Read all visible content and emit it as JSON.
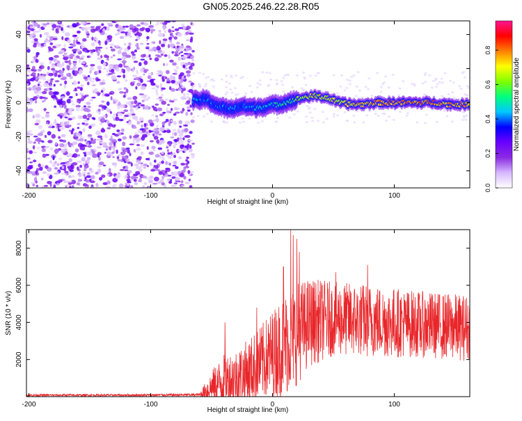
{
  "title": "GN05.2025.246.22.28.R05",
  "chart_data": [
    {
      "type": "heatmap",
      "title": "GN05.2025.246.22.28.R05",
      "xlabel": "Height of straight line (km)",
      "ylabel": "Frequency (Hz)",
      "xlim": [
        -202,
        162
      ],
      "ylim": [
        -50,
        48
      ],
      "xticks": [
        -200,
        -100,
        0,
        100
      ],
      "yticks": [
        -40,
        -20,
        0,
        20,
        40
      ],
      "colorbar": {
        "label": "Normalized spectral amplitude",
        "range": [
          0,
          0.97
        ],
        "ticks": [
          0.0,
          0.2,
          0.4,
          0.6,
          0.8
        ],
        "colormap": [
          "#ffffff",
          "#d6b8ff",
          "#8a2be2",
          "#6a00ff",
          "#0000ff",
          "#00c8ff",
          "#00ff80",
          "#80ff00",
          "#ffff00",
          "#ff8000",
          "#ff0000",
          "#ff1493"
        ]
      },
      "noise_region": {
        "x_start": -202,
        "x_end": -65,
        "amplitude_range": [
          0.0,
          0.25
        ]
      },
      "signal_ridge": [
        {
          "x": -65,
          "freq": 1,
          "amp": 0.45
        },
        {
          "x": -55,
          "freq": 2,
          "amp": 0.4
        },
        {
          "x": -45,
          "freq": -2,
          "amp": 0.38
        },
        {
          "x": -35,
          "freq": -4,
          "amp": 0.4
        },
        {
          "x": -25,
          "freq": -2,
          "amp": 0.42
        },
        {
          "x": -15,
          "freq": -3,
          "amp": 0.44
        },
        {
          "x": -5,
          "freq": -2,
          "amp": 0.46
        },
        {
          "x": 5,
          "freq": -1,
          "amp": 0.5
        },
        {
          "x": 15,
          "freq": 1,
          "amp": 0.55
        },
        {
          "x": 25,
          "freq": 3,
          "amp": 0.65
        },
        {
          "x": 35,
          "freq": 4,
          "amp": 0.7
        },
        {
          "x": 45,
          "freq": 3,
          "amp": 0.7
        },
        {
          "x": 55,
          "freq": 0,
          "amp": 0.7
        },
        {
          "x": 65,
          "freq": -1,
          "amp": 0.72
        },
        {
          "x": 75,
          "freq": -1,
          "amp": 0.75
        },
        {
          "x": 85,
          "freq": 0,
          "amp": 0.78
        },
        {
          "x": 95,
          "freq": 0,
          "amp": 0.8
        },
        {
          "x": 105,
          "freq": 0,
          "amp": 0.82
        },
        {
          "x": 115,
          "freq": 0,
          "amp": 0.8
        },
        {
          "x": 125,
          "freq": 0,
          "amp": 0.82
        },
        {
          "x": 135,
          "freq": 0,
          "amp": 0.8
        },
        {
          "x": 145,
          "freq": -1,
          "amp": 0.78
        },
        {
          "x": 155,
          "freq": -1,
          "amp": 0.78
        },
        {
          "x": 162,
          "freq": -1,
          "amp": 0.78
        }
      ]
    },
    {
      "type": "line",
      "xlabel": "Height of straight line (km)",
      "ylabel": "SNR (10 * v/v)",
      "xlim": [
        -202,
        162
      ],
      "ylim": [
        0,
        9000
      ],
      "xticks": [
        -200,
        -100,
        0,
        100
      ],
      "yticks": [
        2000,
        4000,
        6000,
        8000
      ],
      "color": "#e8262a",
      "envelope": [
        {
          "x": -202,
          "base": 80,
          "spread": 60
        },
        {
          "x": -120,
          "base": 80,
          "spread": 60
        },
        {
          "x": -60,
          "base": 100,
          "spread": 80
        },
        {
          "x": -50,
          "base": 500,
          "spread": 900
        },
        {
          "x": -40,
          "base": 900,
          "spread": 1400
        },
        {
          "x": -30,
          "base": 1000,
          "spread": 1600
        },
        {
          "x": -20,
          "base": 1300,
          "spread": 1800
        },
        {
          "x": -10,
          "base": 1800,
          "spread": 2000
        },
        {
          "x": 0,
          "base": 2300,
          "spread": 2400
        },
        {
          "x": 10,
          "base": 2800,
          "spread": 2800
        },
        {
          "x": 20,
          "base": 3400,
          "spread": 2800
        },
        {
          "x": 30,
          "base": 4000,
          "spread": 2400
        },
        {
          "x": 50,
          "base": 4200,
          "spread": 2000
        },
        {
          "x": 80,
          "base": 4100,
          "spread": 2000
        },
        {
          "x": 120,
          "base": 3900,
          "spread": 1800
        },
        {
          "x": 162,
          "base": 3700,
          "spread": 1800
        }
      ],
      "spikes": [
        {
          "x": 15,
          "y": 9000
        },
        {
          "x": 17,
          "y": 8700
        },
        {
          "x": 20,
          "y": 8500
        },
        {
          "x": 22,
          "y": 7800
        },
        {
          "x": 9,
          "y": 7000
        },
        {
          "x": 52,
          "y": 6700
        },
        {
          "x": 78,
          "y": 7100
        },
        {
          "x": -39,
          "y": 4000
        },
        {
          "x": -13,
          "y": 4800
        }
      ]
    }
  ]
}
